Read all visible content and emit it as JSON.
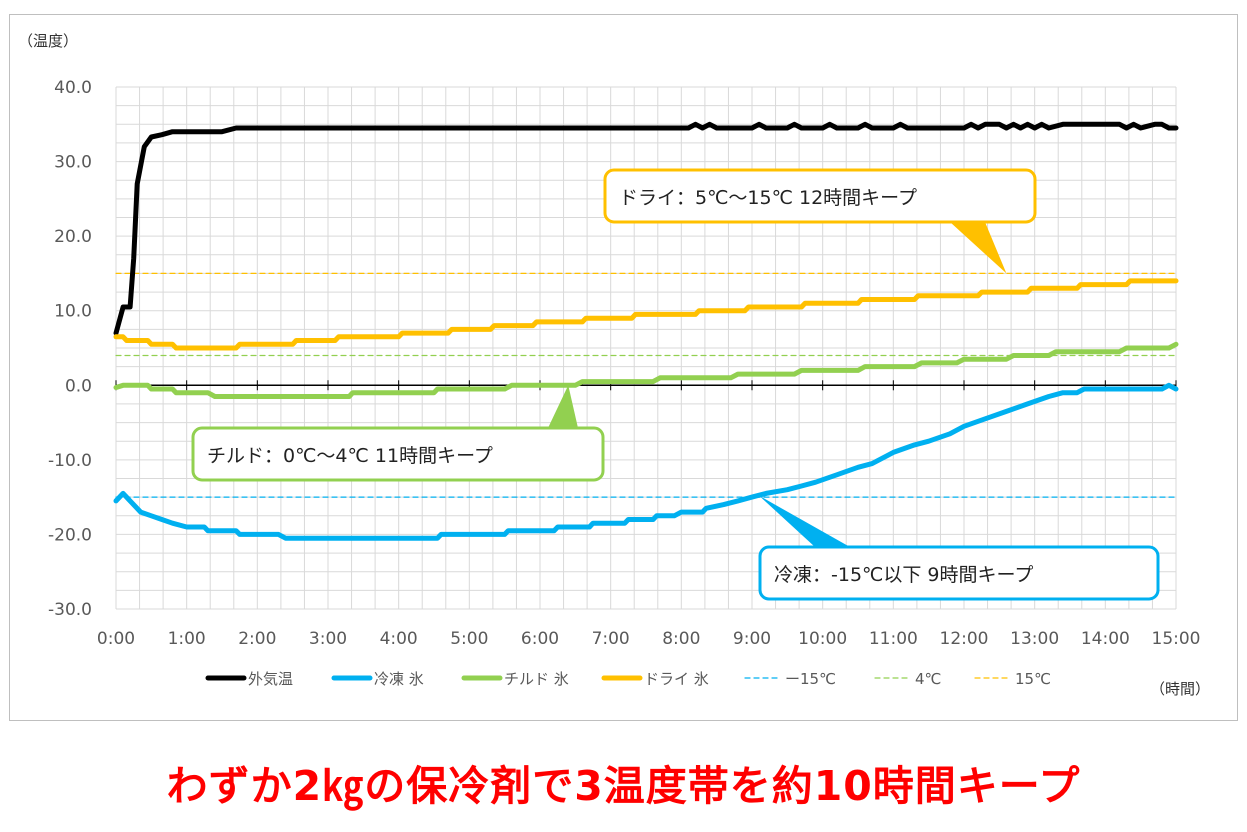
{
  "chart_data": {
    "type": "line",
    "ylabel": "（温度）",
    "xlabel": "（時間）",
    "ylim": [
      -30,
      40
    ],
    "xlim": [
      0,
      15
    ],
    "y_ticks": [
      "40.0",
      "30.0",
      "20.0",
      "10.0",
      "0.0",
      "-10.0",
      "-20.0",
      "-30.0"
    ],
    "y_tick_values": [
      40,
      30,
      20,
      10,
      0,
      -10,
      -20,
      -30
    ],
    "x_ticks": [
      "0:00",
      "1:00",
      "2:00",
      "3:00",
      "4:00",
      "5:00",
      "6:00",
      "7:00",
      "8:00",
      "9:00",
      "10:00",
      "11:00",
      "12:00",
      "13:00",
      "14:00",
      "15:00"
    ],
    "grid": true,
    "legend_position": "bottom",
    "series": [
      {
        "name": "外気温",
        "color": "#000000",
        "style": "solid",
        "points": [
          [
            0,
            7
          ],
          [
            0.1,
            10.5
          ],
          [
            0.2,
            10.5
          ],
          [
            0.25,
            17
          ],
          [
            0.3,
            27
          ],
          [
            0.4,
            32
          ],
          [
            0.5,
            33.3
          ],
          [
            0.65,
            33.6
          ],
          [
            0.8,
            34
          ],
          [
            1.0,
            34
          ],
          [
            1.5,
            34
          ],
          [
            1.7,
            34.5
          ],
          [
            3,
            34.5
          ],
          [
            5,
            34.5
          ],
          [
            7,
            34.5
          ],
          [
            8.1,
            34.5
          ],
          [
            8.2,
            35
          ],
          [
            8.3,
            34.5
          ],
          [
            8.4,
            35
          ],
          [
            8.5,
            34.5
          ],
          [
            9.0,
            34.5
          ],
          [
            9.1,
            35
          ],
          [
            9.2,
            34.5
          ],
          [
            9.5,
            34.5
          ],
          [
            9.6,
            35
          ],
          [
            9.7,
            34.5
          ],
          [
            10.0,
            34.5
          ],
          [
            10.1,
            35
          ],
          [
            10.2,
            34.5
          ],
          [
            10.5,
            34.5
          ],
          [
            10.6,
            35
          ],
          [
            10.7,
            34.5
          ],
          [
            11.0,
            34.5
          ],
          [
            11.1,
            35
          ],
          [
            11.2,
            34.5
          ],
          [
            12.0,
            34.5
          ],
          [
            12.1,
            35
          ],
          [
            12.2,
            34.5
          ],
          [
            12.3,
            35
          ],
          [
            12.5,
            35
          ],
          [
            12.6,
            34.5
          ],
          [
            12.7,
            35
          ],
          [
            12.8,
            34.5
          ],
          [
            12.9,
            35
          ],
          [
            13.0,
            34.5
          ],
          [
            13.1,
            35
          ],
          [
            13.2,
            34.5
          ],
          [
            13.4,
            35
          ],
          [
            14.2,
            35
          ],
          [
            14.3,
            34.5
          ],
          [
            14.4,
            35
          ],
          [
            14.5,
            34.5
          ],
          [
            14.7,
            35
          ],
          [
            14.8,
            35
          ],
          [
            14.9,
            34.5
          ],
          [
            15,
            34.5
          ]
        ]
      },
      {
        "name": "冷凍 氷",
        "color": "#00b0f0",
        "style": "solid",
        "points": [
          [
            0,
            -15.5
          ],
          [
            0.1,
            -14.5
          ],
          [
            0.2,
            -15.5
          ],
          [
            0.35,
            -17
          ],
          [
            0.5,
            -17.5
          ],
          [
            0.65,
            -18
          ],
          [
            0.8,
            -18.5
          ],
          [
            1.0,
            -19
          ],
          [
            1.25,
            -19
          ],
          [
            1.3,
            -19.5
          ],
          [
            1.7,
            -19.5
          ],
          [
            1.75,
            -20
          ],
          [
            2.3,
            -20
          ],
          [
            2.4,
            -20.5
          ],
          [
            3,
            -20.5
          ],
          [
            4,
            -20.5
          ],
          [
            4.55,
            -20.5
          ],
          [
            4.6,
            -20
          ],
          [
            5.5,
            -20
          ],
          [
            5.55,
            -19.5
          ],
          [
            6.2,
            -19.5
          ],
          [
            6.25,
            -19
          ],
          [
            6.7,
            -19
          ],
          [
            6.75,
            -18.5
          ],
          [
            7.2,
            -18.5
          ],
          [
            7.25,
            -18
          ],
          [
            7.6,
            -18
          ],
          [
            7.65,
            -17.5
          ],
          [
            7.9,
            -17.5
          ],
          [
            8.0,
            -17
          ],
          [
            8.3,
            -17
          ],
          [
            8.35,
            -16.5
          ],
          [
            8.6,
            -16
          ],
          [
            8.8,
            -15.5
          ],
          [
            9.0,
            -15
          ],
          [
            9.2,
            -14.5
          ],
          [
            9.5,
            -14
          ],
          [
            9.7,
            -13.5
          ],
          [
            9.9,
            -13
          ],
          [
            10.2,
            -12
          ],
          [
            10.5,
            -11
          ],
          [
            10.7,
            -10.5
          ],
          [
            11.0,
            -9
          ],
          [
            11.3,
            -8
          ],
          [
            11.5,
            -7.5
          ],
          [
            11.8,
            -6.5
          ],
          [
            12.0,
            -5.5
          ],
          [
            12.3,
            -4.5
          ],
          [
            12.6,
            -3.5
          ],
          [
            12.9,
            -2.5
          ],
          [
            13.2,
            -1.5
          ],
          [
            13.4,
            -1
          ],
          [
            13.6,
            -1
          ],
          [
            13.7,
            -0.5
          ],
          [
            14.1,
            -0.5
          ],
          [
            14.6,
            -0.5
          ],
          [
            14.8,
            -0.5
          ],
          [
            14.9,
            0
          ],
          [
            15,
            -0.5
          ]
        ]
      },
      {
        "name": "チルド 氷",
        "color": "#92d050",
        "style": "solid",
        "points": [
          [
            0,
            -0.3
          ],
          [
            0.1,
            0
          ],
          [
            0.3,
            0
          ],
          [
            0.45,
            0
          ],
          [
            0.5,
            -0.5
          ],
          [
            0.8,
            -0.5
          ],
          [
            0.85,
            -1
          ],
          [
            1.3,
            -1
          ],
          [
            1.4,
            -1.5
          ],
          [
            2,
            -1.5
          ],
          [
            3,
            -1.5
          ],
          [
            3.3,
            -1.5
          ],
          [
            3.35,
            -1
          ],
          [
            4.5,
            -1
          ],
          [
            4.55,
            -0.5
          ],
          [
            5.5,
            -0.5
          ],
          [
            5.6,
            0
          ],
          [
            6.5,
            0
          ],
          [
            6.6,
            0.5
          ],
          [
            7.6,
            0.5
          ],
          [
            7.7,
            1
          ],
          [
            8.7,
            1
          ],
          [
            8.8,
            1.5
          ],
          [
            9.6,
            1.5
          ],
          [
            9.7,
            2
          ],
          [
            10.5,
            2
          ],
          [
            10.6,
            2.5
          ],
          [
            11.3,
            2.5
          ],
          [
            11.4,
            3
          ],
          [
            11.9,
            3
          ],
          [
            12.0,
            3.5
          ],
          [
            12.6,
            3.5
          ],
          [
            12.7,
            4
          ],
          [
            13.2,
            4
          ],
          [
            13.3,
            4.5
          ],
          [
            13.5,
            4.5
          ],
          [
            14.0,
            4.5
          ],
          [
            14.2,
            4.5
          ],
          [
            14.3,
            5
          ],
          [
            14.9,
            5
          ],
          [
            15,
            5.5
          ]
        ]
      },
      {
        "name": "ドライ 氷",
        "color": "#ffc000",
        "style": "solid",
        "points": [
          [
            0,
            6.5
          ],
          [
            0.1,
            6.5
          ],
          [
            0.15,
            6
          ],
          [
            0.45,
            6
          ],
          [
            0.5,
            5.5
          ],
          [
            0.8,
            5.5
          ],
          [
            0.85,
            5
          ],
          [
            1.7,
            5
          ],
          [
            1.75,
            5.5
          ],
          [
            2.5,
            5.5
          ],
          [
            2.55,
            6
          ],
          [
            3.1,
            6
          ],
          [
            3.15,
            6.5
          ],
          [
            4.0,
            6.5
          ],
          [
            4.05,
            7
          ],
          [
            4.7,
            7
          ],
          [
            4.75,
            7.5
          ],
          [
            5.3,
            7.5
          ],
          [
            5.35,
            8
          ],
          [
            5.9,
            8
          ],
          [
            5.95,
            8.5
          ],
          [
            6.6,
            8.5
          ],
          [
            6.65,
            9
          ],
          [
            7.3,
            9
          ],
          [
            7.35,
            9.5
          ],
          [
            8.2,
            9.5
          ],
          [
            8.25,
            10
          ],
          [
            8.9,
            10
          ],
          [
            8.95,
            10.5
          ],
          [
            9.7,
            10.5
          ],
          [
            9.75,
            11
          ],
          [
            10.5,
            11
          ],
          [
            10.55,
            11.5
          ],
          [
            11.3,
            11.5
          ],
          [
            11.35,
            12
          ],
          [
            12.2,
            12
          ],
          [
            12.25,
            12.5
          ],
          [
            12.9,
            12.5
          ],
          [
            12.95,
            13
          ],
          [
            13.6,
            13
          ],
          [
            13.65,
            13.5
          ],
          [
            14.3,
            13.5
          ],
          [
            14.35,
            14
          ],
          [
            15,
            14
          ]
        ]
      },
      {
        "name": "ー15℃",
        "color": "#00b0f0",
        "style": "dashed",
        "points": [
          [
            0,
            -15
          ],
          [
            15,
            -15
          ]
        ]
      },
      {
        "name": "4℃",
        "color": "#92d050",
        "style": "dashed",
        "points": [
          [
            0,
            4
          ],
          [
            15,
            4
          ]
        ]
      },
      {
        "name": "15℃",
        "color": "#ffc000",
        "style": "dashed",
        "points": [
          [
            0,
            15
          ],
          [
            15,
            15
          ]
        ]
      }
    ],
    "annotations": [
      {
        "text": "ドライ：5℃～15℃ 12時間キープ",
        "color": "#ffc000",
        "target": [
          12.6,
          15
        ]
      },
      {
        "text": "チルド：0℃～4℃ 11時間キープ",
        "color": "#92d050",
        "target": [
          6.4,
          0
        ]
      },
      {
        "text": "冷凍：-15℃以下 9時間キープ",
        "color": "#00b0f0",
        "target": [
          9.1,
          -14.8
        ]
      }
    ]
  },
  "headline": "わずか2㎏の保冷剤で3温度帯を約10時間キープ"
}
